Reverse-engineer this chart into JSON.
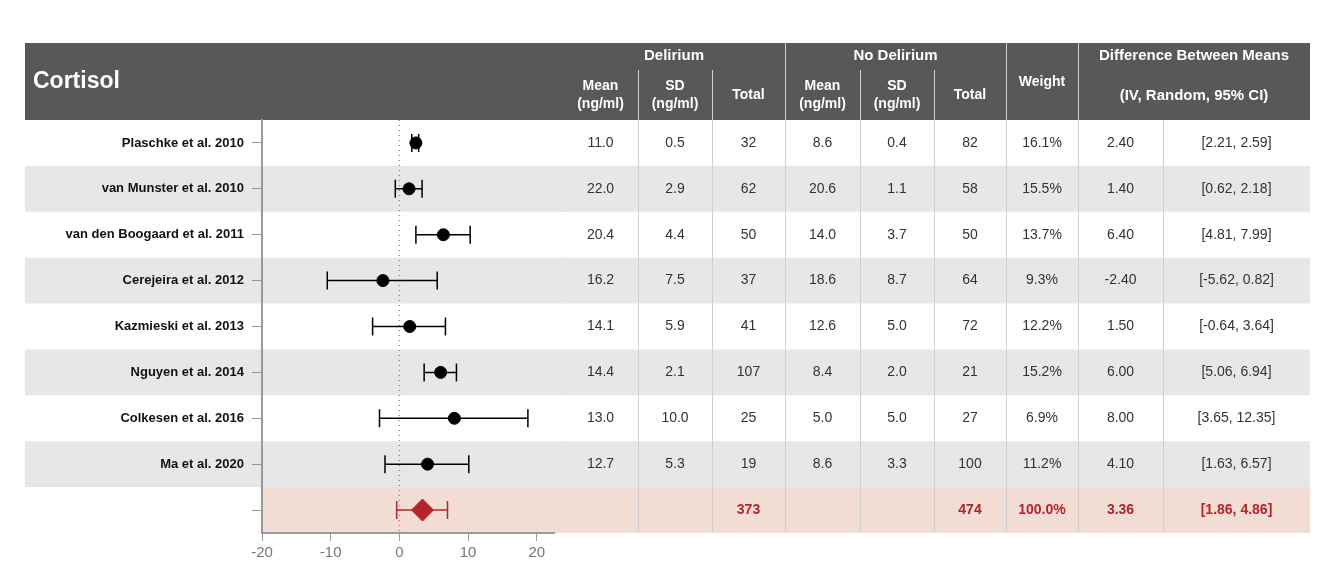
{
  "chart_data": [
    {
      "type": "scatter",
      "orientation": "horizontal",
      "title": "Cortisol",
      "categories": [
        "Plaschke et al. 2010",
        "van Munster et al. 2010",
        "van den Boogaard et al. 2011",
        "Cerejeira et al. 2012",
        "Kazmieski et al. 2013",
        "Nguyen et al. 2014",
        "Colkesen et al. 2016",
        "Ma et al. 2020",
        null
      ],
      "series": [
        {
          "color": "#000000",
          "marker": "circle",
          "values": [
            2.4,
            1.4,
            6.4,
            -2.4,
            1.5,
            6.0,
            8.0,
            4.1,
            null
          ],
          "errors": [
            [
              1.8,
              2.8
            ],
            [
              -0.6,
              3.3
            ],
            [
              2.4,
              10.3
            ],
            [
              -10.5,
              5.5
            ],
            [
              -3.9,
              6.7
            ],
            [
              3.6,
              8.3
            ],
            [
              -2.9,
              18.7
            ],
            [
              -2.1,
              10.1
            ],
            null
          ]
        },
        {
          "color": "#b5242a",
          "marker": "diamond",
          "values": [
            null,
            null,
            null,
            null,
            null,
            null,
            null,
            null,
            3.36
          ],
          "errors": [
            null,
            null,
            null,
            null,
            null,
            null,
            null,
            null,
            [
              -0.4,
              7.0
            ]
          ]
        }
      ],
      "xlim": [
        -20,
        22.5
      ],
      "xticks": [
        -20,
        -10,
        0,
        10,
        20
      ],
      "ref_lines": [
        {
          "axis": "x",
          "value": 0,
          "color": "#888888",
          "line_style": "dotted"
        }
      ]
    },
    {
      "type": "heatmap",
      "categories": [
        "Mean (ng/ml)",
        "SD (ng/ml)",
        "Total",
        "Mean (ng/ml)",
        "SD (ng/ml)",
        "Total",
        "Weight",
        null,
        null
      ],
      "y_categories": [
        null,
        null,
        null,
        null,
        null,
        null,
        null,
        null,
        null
      ],
      "annotations": [
        "Delirium",
        "No Delirium",
        "Difference Between Means",
        "(IV, Random, 95% CI)"
      ],
      "cells": [
        [
          11.0,
          0.5,
          32,
          8.6,
          0.4,
          82,
          16.1,
          2.4,
          null
        ],
        [
          22.0,
          2.9,
          62,
          20.6,
          1.1,
          58,
          15.5,
          1.4,
          null
        ],
        [
          20.4,
          4.4,
          50,
          14.0,
          3.7,
          50,
          13.7,
          6.4,
          null
        ],
        [
          16.2,
          7.5,
          37,
          18.6,
          8.7,
          64,
          9.3,
          -2.4,
          null
        ],
        [
          14.1,
          5.9,
          41,
          12.6,
          5.0,
          72,
          12.2,
          1.5,
          null
        ],
        [
          14.4,
          2.1,
          107,
          8.4,
          2.0,
          21,
          15.2,
          6.0,
          null
        ],
        [
          13.0,
          10.0,
          25,
          5.0,
          5.0,
          27,
          6.9,
          8.0,
          null
        ],
        [
          12.7,
          5.3,
          19,
          8.6,
          3.3,
          100,
          11.2,
          4.1,
          null
        ],
        [
          null,
          null,
          373,
          null,
          null,
          474,
          100.0,
          3.36,
          null
        ]
      ],
      "cell_labels": [
        [
          "11.0",
          "0.5",
          "32",
          "8.6",
          "0.4",
          "82",
          "16.1%",
          "2.40",
          "[2.21, 2.59]"
        ],
        [
          "22.0",
          "2.9",
          "62",
          "20.6",
          "1.1",
          "58",
          "15.5%",
          "1.40",
          "[0.62, 2.18]"
        ],
        [
          "20.4",
          "4.4",
          "50",
          "14.0",
          "3.7",
          "50",
          "13.7%",
          "6.40",
          "[4.81, 7.99]"
        ],
        [
          "16.2",
          "7.5",
          "37",
          "18.6",
          "8.7",
          "64",
          "9.3%",
          "-2.40",
          "[-5.62, 0.82]"
        ],
        [
          "14.1",
          "5.9",
          "41",
          "12.6",
          "5.0",
          "72",
          "12.2%",
          "1.50",
          "[-0.64, 3.64]"
        ],
        [
          "14.4",
          "2.1",
          "107",
          "8.4",
          "2.0",
          "21",
          "15.2%",
          "6.00",
          "[5.06, 6.94]"
        ],
        [
          "13.0",
          "10.0",
          "25",
          "5.0",
          "5.0",
          "27",
          "6.9%",
          "8.00",
          "[3.65, 12.35]"
        ],
        [
          "12.7",
          "5.3",
          "19",
          "8.6",
          "3.3",
          "100",
          "11.2%",
          "4.10",
          "[1.63, 6.57]"
        ],
        [
          null,
          null,
          "373",
          null,
          null,
          "474",
          "100.0%",
          "3.36",
          "[1.86, 4.86]"
        ]
      ]
    }
  ]
}
